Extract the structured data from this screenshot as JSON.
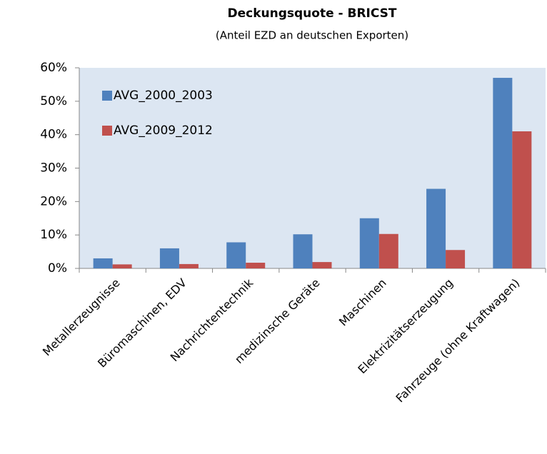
{
  "chart_data": {
    "type": "bar",
    "title": "Deckungsquote - BRICST",
    "subtitle": "(Anteil EZD an deutschen Exporten)",
    "categories": [
      "Metallerzeugnisse",
      "Büromaschinen, EDV",
      "Nachrichtentechnik",
      "medizinsche Geräte",
      "Maschinen",
      "Elektrizitätserzeugung",
      "Fahrzeuge (ohne Kraftwagen)"
    ],
    "series": [
      {
        "name": "AVG_2000_2003",
        "color": "#4f81bd",
        "values": [
          3,
          6,
          7.8,
          10.2,
          15,
          23.8,
          57
        ]
      },
      {
        "name": "AVG_2009_2012",
        "color": "#c0504d",
        "values": [
          1.2,
          1.3,
          1.7,
          1.9,
          10.3,
          5.5,
          41
        ]
      }
    ],
    "ylim": [
      0,
      60
    ],
    "yticks": [
      {
        "value": 0,
        "label": "0%"
      },
      {
        "value": 10,
        "label": "10%"
      },
      {
        "value": 20,
        "label": "20%"
      },
      {
        "value": 30,
        "label": "30%"
      },
      {
        "value": 40,
        "label": "40%"
      },
      {
        "value": 50,
        "label": "50%"
      },
      {
        "value": 60,
        "label": "60%"
      }
    ],
    "grid": false,
    "legend": "upper left"
  }
}
